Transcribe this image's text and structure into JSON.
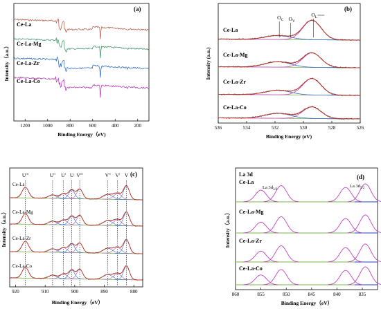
{
  "chart_data": [
    {
      "panel": "(a)",
      "type": "line",
      "xlabel": "Binding Energy（eV)",
      "ylabel": "Intensity（a.u.）",
      "xlim": [
        1300,
        100
      ],
      "xticks": [
        1200,
        1000,
        800,
        600,
        400,
        200
      ],
      "series": [
        {
          "name": "Ce-La",
          "color": "#b5503a",
          "offset": 3.1
        },
        {
          "name": "Ce-La-Mg",
          "color": "#2e8b57",
          "offset": 2.2
        },
        {
          "name": "Ce-La-Zr",
          "color": "#1f5fbf",
          "offset": 1.3
        },
        {
          "name": "Ce-La-Co",
          "color": "#b028b0",
          "offset": 0.35
        }
      ]
    },
    {
      "panel": "(b)",
      "type": "line",
      "xlabel": "Binding Energy (eV)",
      "ylabel": "Intensity (a.u.)",
      "xlim": [
        536,
        526
      ],
      "xticks": [
        536,
        534,
        532,
        530,
        528,
        526
      ],
      "annotations": [
        {
          "main": "O",
          "sub": "C",
          "x": 531.7
        },
        {
          "main": "O",
          "sub": "V",
          "x": 530.9
        },
        {
          "main": "O",
          "sub": "L",
          "x": 529.3
        }
      ],
      "peaks": {
        "OC": 531.8,
        "OL": 529.4
      },
      "series": [
        {
          "name": "Ce-La",
          "offset": 3,
          "oc_amp": 0.22,
          "ol_amp": 1.0
        },
        {
          "name": "Ce-La-Mg",
          "offset": 2,
          "oc_amp": 0.3,
          "ol_amp": 0.75
        },
        {
          "name": "Ce-La-Zr",
          "offset": 1,
          "oc_amp": 0.25,
          "ol_amp": 0.85
        },
        {
          "name": "Ce-La-Co",
          "offset": 0,
          "oc_amp": 0.28,
          "ol_amp": 0.6
        }
      ]
    },
    {
      "panel": "(c)",
      "type": "line",
      "xlabel": "Binding Energy（eV）",
      "ylabel": "Intensity（a.u.）",
      "xlim": [
        922,
        877
      ],
      "xticks": [
        920,
        910,
        900,
        890,
        880
      ],
      "peak_labels": [
        {
          "label": "U'''",
          "x": 916.7
        },
        {
          "label": "U''",
          "x": 907.5
        },
        {
          "label": "U'",
          "x": 903.8
        },
        {
          "label": "U",
          "x": 901.0
        },
        {
          "label": "V'''",
          "x": 898.3
        },
        {
          "label": "V''",
          "x": 888.8
        },
        {
          "label": "V'",
          "x": 885.5
        },
        {
          "label": "V",
          "x": 882.5
        }
      ],
      "series": [
        {
          "name": "Ce-La",
          "offset": 3
        },
        {
          "name": "Ce-La-Mg",
          "offset": 2
        },
        {
          "name": "Ce-La-Zr",
          "offset": 1
        },
        {
          "name": "Ce-La-Co",
          "offset": 0
        }
      ]
    },
    {
      "panel": "(d)",
      "type": "line",
      "title": "La 3d",
      "xlabel": "Binding Energy（eV）",
      "ylabel": "Intensity（a.u.）",
      "xlim": [
        860,
        832
      ],
      "xticks": [
        860,
        855,
        850,
        845,
        840,
        835
      ],
      "annotations": [
        {
          "main": "La 3d",
          "sub": "3/2",
          "x": 852.0
        },
        {
          "main": "La 3d",
          "sub": "5/2",
          "x": 835.5
        }
      ],
      "peaks": [
        855.0,
        851.0,
        838.3,
        834.4
      ],
      "series": [
        {
          "name": "Ce-La",
          "offset": 3
        },
        {
          "name": "Ce-La-Mg",
          "offset": 2
        },
        {
          "name": "Ce-La-Zr",
          "offset": 1
        },
        {
          "name": "Ce-La-Co",
          "offset": 0
        }
      ]
    }
  ]
}
